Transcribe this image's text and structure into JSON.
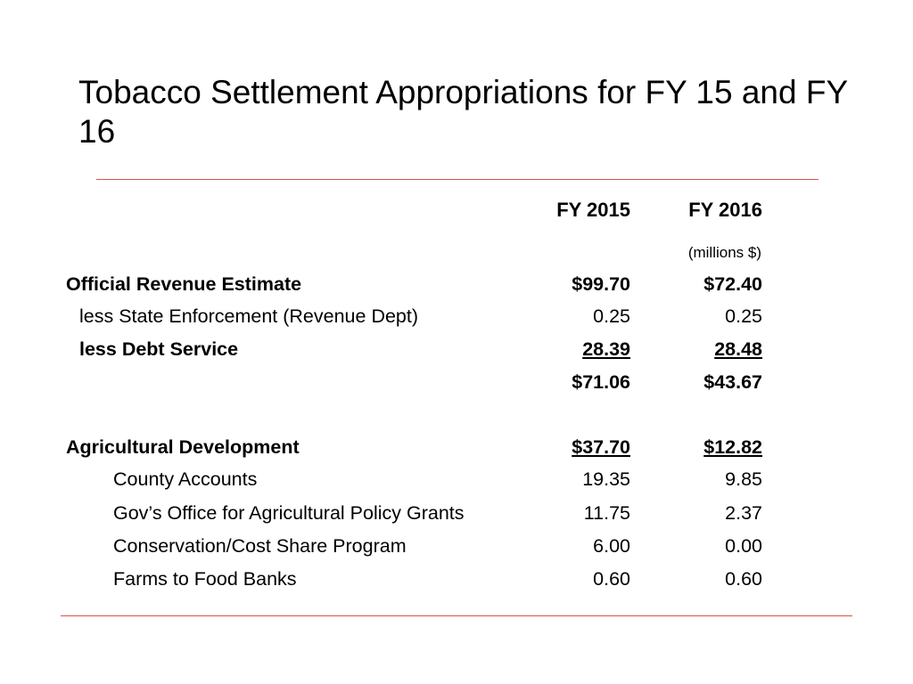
{
  "title": "Tobacco Settlement Appropriations for FY 15 and FY 16",
  "columns": {
    "fy2015": "FY 2015",
    "fy2016": "FY 2016",
    "units": "(millions $)"
  },
  "rows": [
    {
      "label": "Official Revenue Estimate",
      "fy2015": "$99.70",
      "fy2016": "$72.40"
    },
    {
      "label": "less State Enforcement (Revenue Dept)",
      "fy2015": "0.25",
      "fy2016": "0.25"
    },
    {
      "label": "less Debt Service",
      "fy2015": "28.39",
      "fy2016": "28.48"
    },
    {
      "label": "",
      "fy2015": "$71.06",
      "fy2016": "$43.67"
    },
    {
      "label": "Agricultural Development",
      "fy2015": "$37.70",
      "fy2016": "$12.82"
    },
    {
      "label": "County Accounts",
      "fy2015": "19.35",
      "fy2016": "9.85"
    },
    {
      "label": "Gov’s Office for Agricultural Policy Grants",
      "fy2015": "11.75",
      "fy2016": "2.37"
    },
    {
      "label": "Conservation/Cost Share Program",
      "fy2015": "6.00",
      "fy2016": "0.00"
    },
    {
      "label": "Farms to Food Banks",
      "fy2015": "0.60",
      "fy2016": "0.60"
    }
  ]
}
